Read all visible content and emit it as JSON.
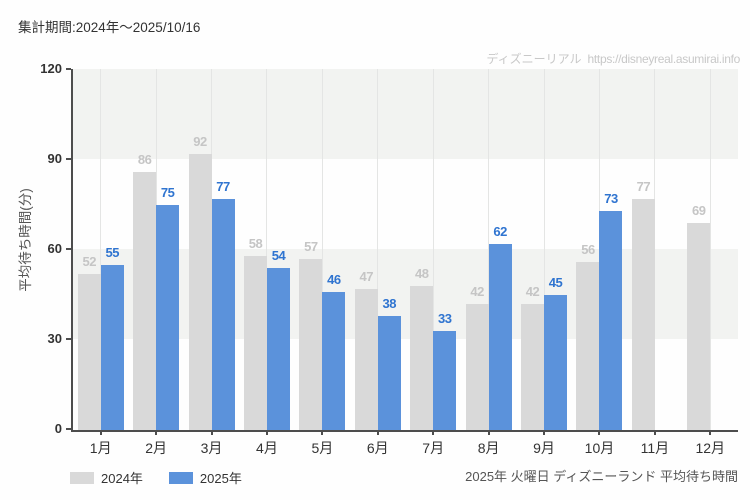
{
  "header": {
    "period_label": "集計期間:2024年〜2025/10/16",
    "watermark": {
      "site_name": "ディズニーリアル",
      "url": "https://disneyreal.asumirai.info"
    }
  },
  "chart_data": {
    "type": "bar",
    "title": "",
    "categories": [
      "1月",
      "2月",
      "3月",
      "4月",
      "5月",
      "6月",
      "7月",
      "8月",
      "9月",
      "10月",
      "11月",
      "12月"
    ],
    "series": [
      {
        "name": "2024年",
        "color": "#d9d9d9",
        "label_color": "#c5c5c5",
        "values": [
          52,
          86,
          92,
          58,
          57,
          47,
          48,
          42,
          42,
          56,
          77,
          69
        ]
      },
      {
        "name": "2025年",
        "color": "#5b92db",
        "label_color": "#2f74d0",
        "values": [
          55,
          75,
          77,
          54,
          46,
          38,
          33,
          62,
          45,
          73,
          null,
          null
        ]
      }
    ],
    "xlabel": "",
    "ylabel": "平均待ち時間(分)",
    "ylim": [
      0,
      120
    ],
    "yticks": [
      0,
      30,
      60,
      90,
      120
    ],
    "band_color": "#f2f3f1",
    "gridline_color": "#e4e5e4",
    "axis_color": "#4d4d4d",
    "tick_label_color": "#333333",
    "grid": "alternating horizontal bands (30-60, 90-120) + vertical gridline per month",
    "legend_position": "bottom-left"
  },
  "footer": {
    "caption": "2025年 火曜日 ディズニーランド 平均待ち時間"
  }
}
